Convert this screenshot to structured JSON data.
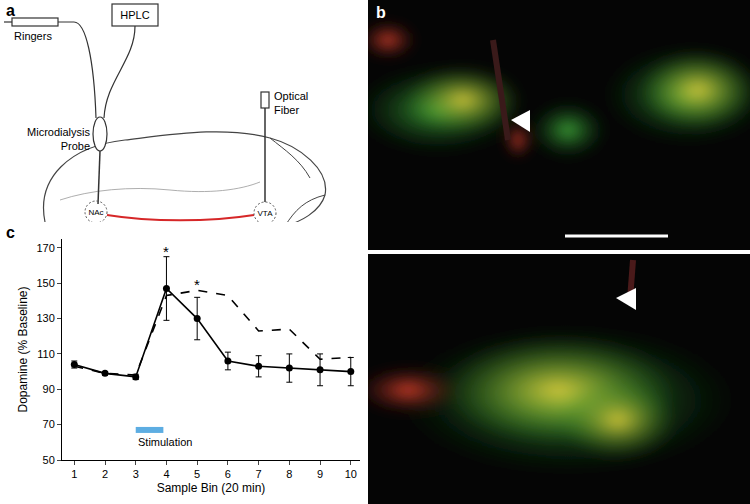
{
  "figure": {
    "a": {
      "panel_label": "a",
      "ringers": "Ringers",
      "hplc": "HPLC",
      "probe": [
        "Microdialysis",
        "Probe"
      ],
      "fiber": [
        "Optical",
        "Fiber"
      ],
      "nac": "NAc",
      "vta": "VTA"
    },
    "b": {
      "panel_label": "b"
    }
  },
  "chart_data": {
    "type": "line",
    "panel_label": "c",
    "x_label": "Sample Bin (20 min)",
    "y_label": "Dopamine (% Baseline)",
    "x": [
      1,
      2,
      3,
      4,
      5,
      6,
      7,
      8,
      9,
      10
    ],
    "xlim": [
      0.6,
      10.3
    ],
    "xticks": [
      1,
      2,
      3,
      4,
      5,
      6,
      7,
      8,
      9,
      10
    ],
    "ylim": [
      50,
      175
    ],
    "yticks": [
      50,
      70,
      90,
      110,
      130,
      150,
      170
    ],
    "grid": false,
    "series": [
      {
        "color": "#000000",
        "marker": "circle",
        "line_style": "solid",
        "values": [
          104,
          99,
          97,
          147,
          130,
          106,
          103,
          102,
          101,
          100
        ],
        "errors": [
          2,
          1,
          1.5,
          18,
          12,
          5,
          6,
          8,
          9,
          8
        ]
      },
      {
        "color": "#000000",
        "marker": "none",
        "line_style": "dash",
        "values": [
          103,
          99,
          98,
          143,
          146,
          143,
          123,
          124,
          107,
          108
        ]
      }
    ],
    "annotations": [
      {
        "text": "*",
        "x": 4,
        "y": 168
      },
      {
        "text": "*",
        "x": 5,
        "y": 149
      }
    ],
    "stimulation": {
      "text": "Stimulation",
      "x": [
        3,
        3.9
      ],
      "y": 67,
      "color": "#5dade2"
    }
  }
}
